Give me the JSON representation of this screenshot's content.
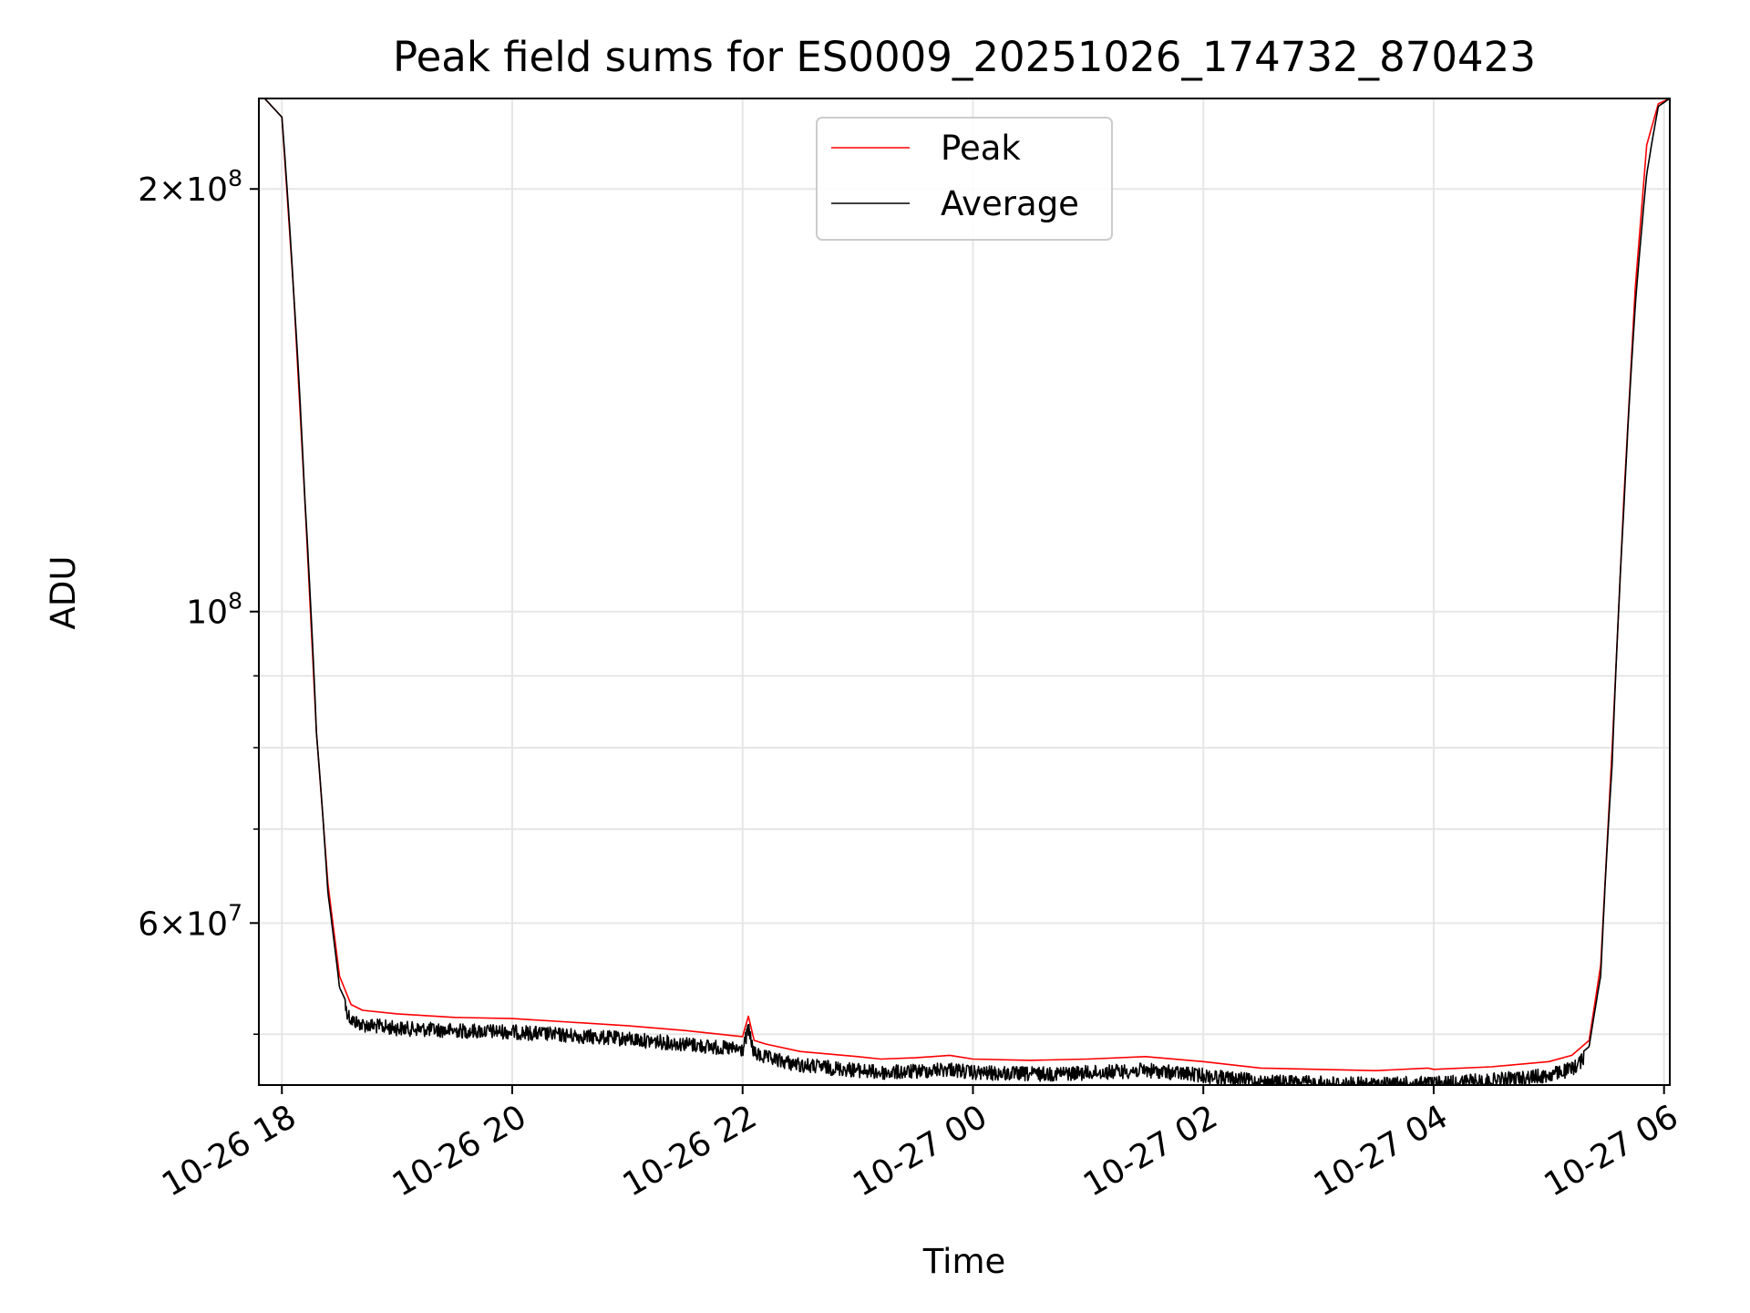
{
  "chart_data": {
    "type": "line",
    "title": "Peak field sums for ES0009_20251026_174732_870423",
    "xlabel": "Time",
    "ylabel": "ADU",
    "y_scale": "log",
    "xlim_hours": [
      -0.2,
      12.05
    ],
    "ylim": [
      46000000,
      232000000
    ],
    "x_ticks": [
      {
        "hour": 0,
        "label": "10-26 18"
      },
      {
        "hour": 2,
        "label": "10-26 20"
      },
      {
        "hour": 4,
        "label": "10-26 22"
      },
      {
        "hour": 6,
        "label": "10-27 00"
      },
      {
        "hour": 8,
        "label": "10-27 02"
      },
      {
        "hour": 10,
        "label": "10-27 04"
      },
      {
        "hour": 12,
        "label": "10-27 06"
      }
    ],
    "y_major_ticks": [
      {
        "value": 60000000,
        "base": "6×10",
        "exp": "7"
      },
      {
        "value": 100000000,
        "base": "10",
        "exp": "8"
      },
      {
        "value": 200000000,
        "base": "2×10",
        "exp": "8"
      }
    ],
    "y_minor_values": [
      50000000,
      70000000,
      80000000,
      90000000
    ],
    "grid": true,
    "legend_position": "top-center",
    "series": [
      {
        "name": "Peak",
        "color": "#ff0000",
        "x": [
          -0.15,
          0.0,
          0.1,
          0.2,
          0.3,
          0.4,
          0.5,
          0.6,
          0.7,
          1.0,
          1.5,
          2.0,
          2.5,
          3.0,
          3.5,
          4.0,
          4.05,
          4.1,
          4.2,
          4.5,
          5.0,
          5.2,
          5.5,
          5.8,
          6.0,
          6.5,
          7.0,
          7.5,
          8.0,
          8.5,
          9.0,
          9.5,
          9.95,
          10.0,
          10.5,
          11.0,
          11.2,
          11.35,
          11.45,
          11.55,
          11.65,
          11.75,
          11.85,
          11.95,
          12.05
        ],
        "y": [
          232000000,
          225000000,
          170000000,
          120000000,
          82000000,
          64000000,
          55000000,
          52500000,
          52000000,
          51700000,
          51400000,
          51300000,
          51000000,
          50700000,
          50300000,
          49800000,
          51500000,
          49500000,
          49200000,
          48600000,
          48200000,
          48000000,
          48100000,
          48300000,
          48000000,
          47900000,
          48000000,
          48200000,
          47800000,
          47300000,
          47200000,
          47100000,
          47300000,
          47200000,
          47400000,
          47800000,
          48300000,
          49500000,
          56000000,
          80000000,
          120000000,
          170000000,
          215000000,
          230000000,
          232000000
        ]
      },
      {
        "name": "Average",
        "color": "#000000",
        "x": [
          -0.15,
          0.0,
          0.1,
          0.2,
          0.3,
          0.4,
          0.5,
          0.6,
          0.7,
          1.0,
          1.5,
          2.0,
          2.5,
          3.0,
          3.5,
          4.0,
          4.05,
          4.1,
          4.2,
          4.5,
          5.0,
          5.2,
          5.5,
          5.8,
          6.0,
          6.5,
          7.0,
          7.5,
          8.0,
          8.5,
          9.0,
          9.5,
          10.0,
          10.5,
          11.0,
          11.2,
          11.35,
          11.45,
          11.55,
          11.65,
          11.75,
          11.85,
          11.95,
          12.05
        ],
        "y": [
          232000000,
          225000000,
          170000000,
          120000000,
          82000000,
          63000000,
          54000000,
          51800000,
          51400000,
          51100000,
          50900000,
          50800000,
          50500000,
          50200000,
          49800000,
          49300000,
          51000000,
          49000000,
          48700000,
          48100000,
          47700000,
          47500000,
          47600000,
          47800000,
          47500000,
          47400000,
          47500000,
          47700000,
          47300000,
          46800000,
          46700000,
          46600000,
          46700000,
          46900000,
          47300000,
          47800000,
          49000000,
          55000000,
          78000000,
          118000000,
          165000000,
          205000000,
          229000000,
          232000000
        ],
        "noise_band_fraction": 0.012
      }
    ]
  }
}
